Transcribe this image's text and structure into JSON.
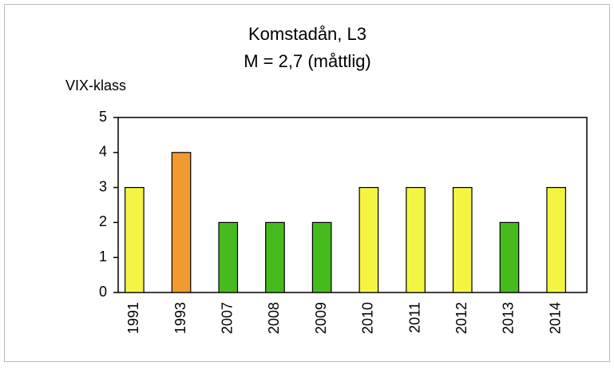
{
  "chart_data": {
    "type": "bar",
    "title": "Komstadån, L3",
    "subtitle": "M = 2,7 (måttlig)",
    "y_label": "VIX-klass",
    "categories": [
      "1991",
      "1993",
      "2007",
      "2008",
      "2009",
      "2010",
      "2011",
      "2012",
      "2013",
      "2014"
    ],
    "values": [
      3,
      4,
      2,
      2,
      2,
      3,
      3,
      3,
      2,
      3
    ],
    "colors": [
      "#f4f542",
      "#f09a30",
      "#46bb1e",
      "#46bb1e",
      "#46bb1e",
      "#f4f542",
      "#f4f542",
      "#f4f542",
      "#46bb1e",
      "#f4f542"
    ],
    "ylim": [
      0,
      5
    ],
    "yticks": [
      0,
      1,
      2,
      3,
      4,
      5
    ],
    "grid": false
  }
}
